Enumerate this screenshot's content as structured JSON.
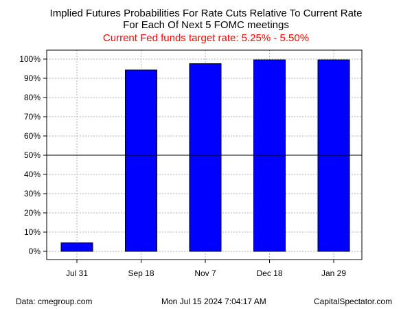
{
  "header": {
    "title_line1": "Implied Futures Probabilities For Rate Cuts Relative To Current Rate",
    "title_line2": "For Each Of Next 5 FOMC meetings",
    "subtitle": "Current Fed funds target rate: 5.25% - 5.50%"
  },
  "footer": {
    "source": "Data: cmegroup.com",
    "timestamp": "Mon Jul 15 2024 7:04:17 AM",
    "brand": "CapitalSpectator.com"
  },
  "colors": {
    "bar": "#0000ff",
    "subtitle": "#ff0000",
    "grid": "#b0b0b0"
  },
  "chart_data": {
    "type": "bar",
    "categories": [
      "Jul 31",
      "Sep 18",
      "Nov 7",
      "Dec 18",
      "Jan 29"
    ],
    "values": [
      4.4,
      94.3,
      97.6,
      99.6,
      99.6
    ],
    "ylim": [
      0,
      100
    ],
    "yticks": [
      0,
      10,
      20,
      30,
      40,
      50,
      60,
      70,
      80,
      90,
      100
    ],
    "ytick_labels": [
      "0%",
      "10%",
      "20%",
      "30%",
      "40%",
      "50%",
      "60%",
      "70%",
      "80%",
      "90%",
      "100%"
    ],
    "reference_line": 50,
    "grid": true
  }
}
